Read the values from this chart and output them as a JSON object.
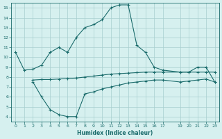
{
  "line1_x": [
    0,
    1,
    2,
    3,
    4,
    5,
    6,
    7,
    8,
    9,
    10,
    11,
    12,
    13,
    14,
    15,
    16,
    17,
    19,
    20,
    21,
    22,
    23
  ],
  "line1_y": [
    10.5,
    8.7,
    8.8,
    9.2,
    10.5,
    11.0,
    10.5,
    12.0,
    13.0,
    13.3,
    13.8,
    15.0,
    15.3,
    15.3,
    11.2,
    10.5,
    9.0,
    8.7,
    8.5,
    8.5,
    9.0,
    9.0,
    7.5
  ],
  "line2_x": [
    2,
    3,
    4,
    5,
    6,
    7,
    8,
    9,
    10,
    11,
    12,
    13,
    14,
    15,
    16,
    17,
    19,
    20,
    21,
    22,
    23
  ],
  "line2_y": [
    7.7,
    7.75,
    7.75,
    7.8,
    7.85,
    7.9,
    8.0,
    8.1,
    8.2,
    8.3,
    8.35,
    8.4,
    8.45,
    8.5,
    8.5,
    8.5,
    8.5,
    8.5,
    8.5,
    8.5,
    8.5
  ],
  "line3_x": [
    2,
    3,
    4,
    5,
    6,
    7,
    8,
    9,
    10,
    11,
    12,
    13,
    14,
    15,
    16,
    17,
    19,
    20,
    21,
    22,
    23
  ],
  "line3_y": [
    7.5,
    6.0,
    4.7,
    4.2,
    4.0,
    4.0,
    6.3,
    6.5,
    6.8,
    7.0,
    7.2,
    7.4,
    7.5,
    7.6,
    7.7,
    7.7,
    7.5,
    7.6,
    7.7,
    7.8,
    7.5
  ],
  "line_color": "#1a6b6b",
  "bg_color": "#d6f0ef",
  "grid_color": "#a8cece",
  "xlabel": "Humidex (Indice chaleur)",
  "xlim": [
    -0.5,
    23.5
  ],
  "ylim": [
    3.5,
    15.5
  ],
  "xticks": [
    0,
    1,
    2,
    3,
    4,
    5,
    6,
    7,
    8,
    9,
    10,
    11,
    12,
    13,
    14,
    15,
    16,
    17,
    19,
    20,
    21,
    22,
    23
  ],
  "yticks": [
    4,
    5,
    6,
    7,
    8,
    9,
    10,
    11,
    12,
    13,
    14,
    15
  ],
  "marker": "+",
  "markersize": 3,
  "linewidth": 0.8
}
